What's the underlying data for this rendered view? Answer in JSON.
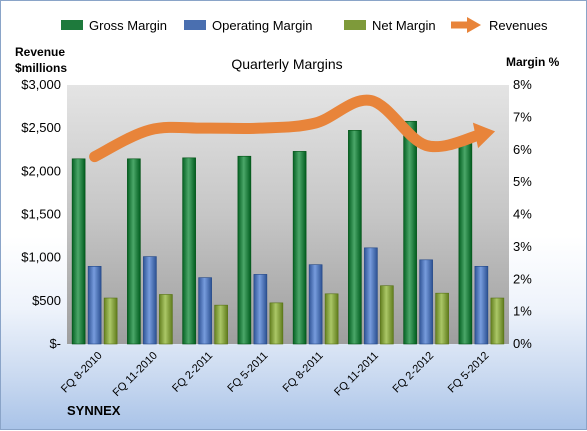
{
  "chart_data": {
    "type": "bar",
    "title": "Quarterly Margins",
    "brand": "SYNNEX",
    "categories": [
      "FQ 8-2010",
      "FQ 11-2010",
      "FQ 2-2011",
      "FQ 5-2011",
      "FQ 8-2011",
      "FQ 11-2011",
      "FQ 2-2012",
      "FQ 5-2012"
    ],
    "y_left": {
      "label_line1": "Revenue",
      "label_line2": "$millions",
      "ylim": [
        0,
        3000
      ],
      "ticks": [
        0,
        500,
        1000,
        1500,
        2000,
        2500,
        3000
      ],
      "tick_labels": [
        "$-",
        "$500",
        "$1,000",
        "$1,500",
        "$2,000",
        "$2,500",
        "$3,000"
      ]
    },
    "y_right": {
      "label": "Margin %",
      "ylim": [
        0,
        8
      ],
      "ticks": [
        0,
        1,
        2,
        3,
        4,
        5,
        6,
        7,
        8
      ],
      "tick_labels": [
        "0%",
        "1%",
        "2%",
        "3%",
        "4%",
        "5%",
        "6%",
        "7%",
        "8%"
      ]
    },
    "series": [
      {
        "name": "Gross Margin",
        "axis": "right",
        "kind": "bar",
        "color": "#1e7a3c",
        "values": [
          5.72,
          5.72,
          5.75,
          5.8,
          5.95,
          6.6,
          6.88,
          6.28
        ]
      },
      {
        "name": "Operating Margin",
        "axis": "right",
        "kind": "bar",
        "color": "#4a6fb0",
        "values": [
          2.4,
          2.7,
          2.05,
          2.15,
          2.45,
          2.97,
          2.6,
          2.4
        ]
      },
      {
        "name": "Net Margin",
        "axis": "right",
        "kind": "bar",
        "color": "#7e9a3a",
        "values": [
          1.42,
          1.53,
          1.2,
          1.27,
          1.55,
          1.8,
          1.57,
          1.42
        ]
      },
      {
        "name": "Revenues",
        "axis": "left",
        "kind": "line",
        "color": "#e8843a",
        "values": [
          2170,
          2480,
          2500,
          2500,
          2560,
          2820,
          2300,
          2430
        ]
      }
    ],
    "legend_position": "top",
    "plot_background": "#c2c2c2",
    "grid": false
  }
}
